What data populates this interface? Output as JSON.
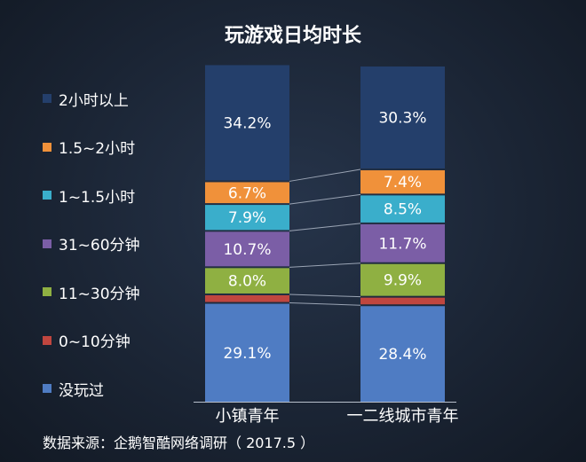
{
  "chart_data": {
    "type": "bar",
    "stacked": true,
    "title": "玩游戏日均时长",
    "categories": [
      "小镇青年",
      "一二线城市青年"
    ],
    "series": [
      {
        "name": "没玩过",
        "color": "#4f7cc3",
        "values": [
          29.1,
          28.4
        ],
        "labels": [
          "29.1%",
          "28.4%"
        ]
      },
      {
        "name": "0~10分钟",
        "color": "#c0463f",
        "values": [
          2.5,
          2.5
        ],
        "labels": [
          "",
          ""
        ]
      },
      {
        "name": "11~30分钟",
        "color": "#8fb042",
        "values": [
          8.0,
          9.9
        ],
        "labels": [
          "8.0%",
          "9.9%"
        ]
      },
      {
        "name": "31~60分钟",
        "color": "#7b5ea6",
        "values": [
          10.7,
          11.7
        ],
        "labels": [
          "10.7%",
          "11.7%"
        ]
      },
      {
        "name": "1~1.5小时",
        "color": "#3aaecb",
        "values": [
          7.9,
          8.5
        ],
        "labels": [
          "7.9%",
          "8.5%"
        ]
      },
      {
        "name": "1.5~2小时",
        "color": "#f0913a",
        "values": [
          6.7,
          7.4
        ],
        "labels": [
          "6.7%",
          "7.4%"
        ]
      },
      {
        "name": "2小时以上",
        "color": "#243f6b",
        "values": [
          34.2,
          30.3
        ],
        "labels": [
          "34.2%",
          "30.3%"
        ]
      }
    ],
    "ylim": [
      0,
      100
    ],
    "legend": "left",
    "grid": false
  },
  "source": "数据来源：企鹅智酷网络调研（ 2017.5 ）"
}
